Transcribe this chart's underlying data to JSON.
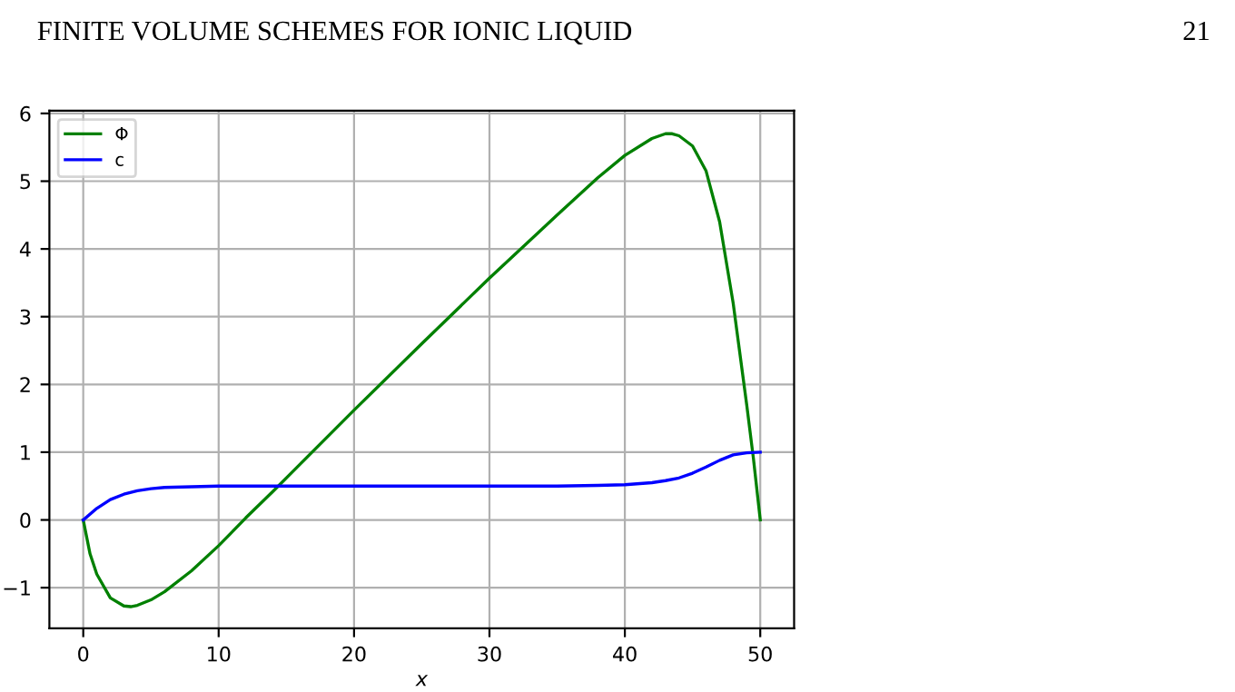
{
  "chart_data": {
    "type": "line",
    "xlabel": "x",
    "annotations": [
      "FINITE VOLUME SCHEMES FOR IONIC LIQUID",
      "21"
    ],
    "xlim": [
      -2.5,
      52.5
    ],
    "ylim": [
      -1.6,
      6.04
    ],
    "xticks": [
      0,
      10,
      20,
      30,
      40,
      50
    ],
    "yticks": [
      {
        "value": -1,
        "label": "−1"
      },
      0,
      1,
      2,
      3,
      4,
      5,
      6
    ],
    "grid": true,
    "legend": "top left",
    "series": [
      {
        "name": "Φ",
        "color": "#008000",
        "x": [
          0,
          0.5,
          1,
          2,
          3,
          3.5,
          4,
          5,
          6,
          8,
          10,
          12,
          14,
          16,
          20,
          25,
          30,
          35,
          38,
          40,
          42,
          43,
          43.5,
          44,
          45,
          46,
          47,
          48,
          49,
          49.5,
          50
        ],
        "values": [
          0,
          -0.5,
          -0.8,
          -1.15,
          -1.27,
          -1.28,
          -1.26,
          -1.18,
          -1.06,
          -0.75,
          -0.38,
          0.03,
          0.42,
          0.82,
          1.62,
          2.6,
          3.57,
          4.5,
          5.05,
          5.38,
          5.63,
          5.7,
          5.7,
          5.67,
          5.52,
          5.15,
          4.4,
          3.2,
          1.7,
          0.9,
          0
        ]
      },
      {
        "name": "c",
        "color": "#0000ff",
        "x": [
          0,
          1,
          2,
          3,
          4,
          5,
          6,
          8,
          10,
          20,
          35,
          38,
          40,
          42,
          43,
          44,
          45,
          46,
          47,
          48,
          49,
          50
        ],
        "values": [
          0,
          0.17,
          0.3,
          0.38,
          0.43,
          0.46,
          0.48,
          0.49,
          0.5,
          0.5,
          0.5,
          0.51,
          0.52,
          0.55,
          0.58,
          0.62,
          0.69,
          0.78,
          0.88,
          0.96,
          0.99,
          1.0
        ]
      }
    ]
  }
}
